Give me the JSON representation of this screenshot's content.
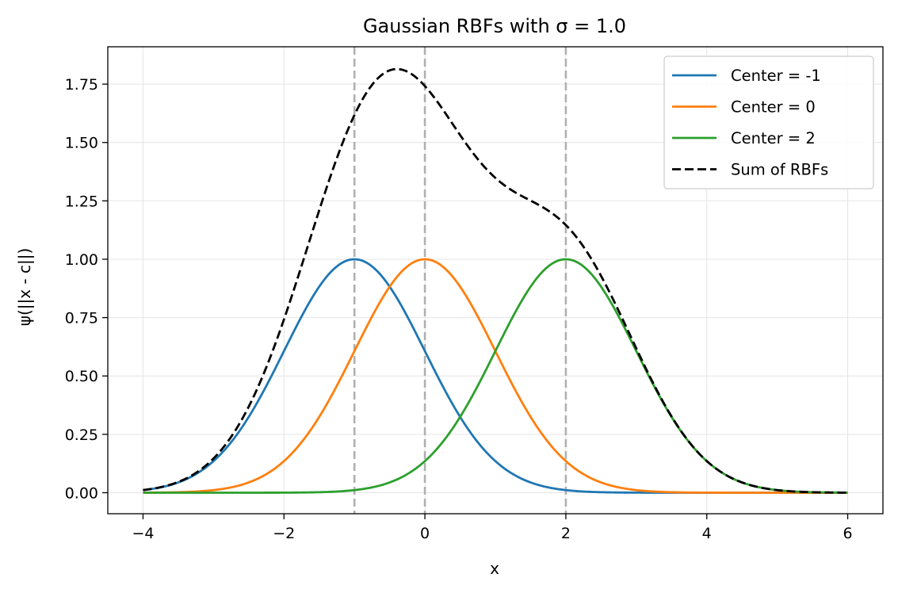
{
  "chart_data": {
    "type": "line",
    "title": "Gaussian RBFs with σ = 1.0",
    "xlabel": "x",
    "ylabel": "ψ(||x - c||)",
    "xlim": [
      -4.5,
      6.5
    ],
    "ylim": [
      -0.09,
      1.91
    ],
    "xticks": [
      -4,
      -2,
      0,
      2,
      4,
      6
    ],
    "xtick_labels": [
      "−4",
      "−2",
      "0",
      "2",
      "4",
      "6"
    ],
    "yticks": [
      0.0,
      0.25,
      0.5,
      0.75,
      1.0,
      1.25,
      1.5,
      1.75
    ],
    "ytick_labels": [
      "0.00",
      "0.25",
      "0.50",
      "0.75",
      "1.00",
      "1.25",
      "1.50",
      "1.75"
    ],
    "grid": true,
    "legend_position": "top-right",
    "sigma": 1.0,
    "x_range": [
      -4,
      6
    ],
    "vertical_lines": {
      "x": [
        -1,
        0,
        2
      ],
      "color": "#b0b0b0",
      "style": "dashed"
    },
    "series": [
      {
        "name": "Center = -1",
        "center": -1,
        "color": "#1f77b4",
        "style": "solid",
        "peak": 1.0
      },
      {
        "name": "Center = 0",
        "center": 0,
        "color": "#ff7f0e",
        "style": "solid",
        "peak": 1.0
      },
      {
        "name": "Center = 2",
        "center": 2,
        "color": "#2ca02c",
        "style": "solid",
        "peak": 1.0
      },
      {
        "name": "Sum of RBFs",
        "color": "#000000",
        "style": "dashed",
        "peak": 1.81
      }
    ]
  }
}
